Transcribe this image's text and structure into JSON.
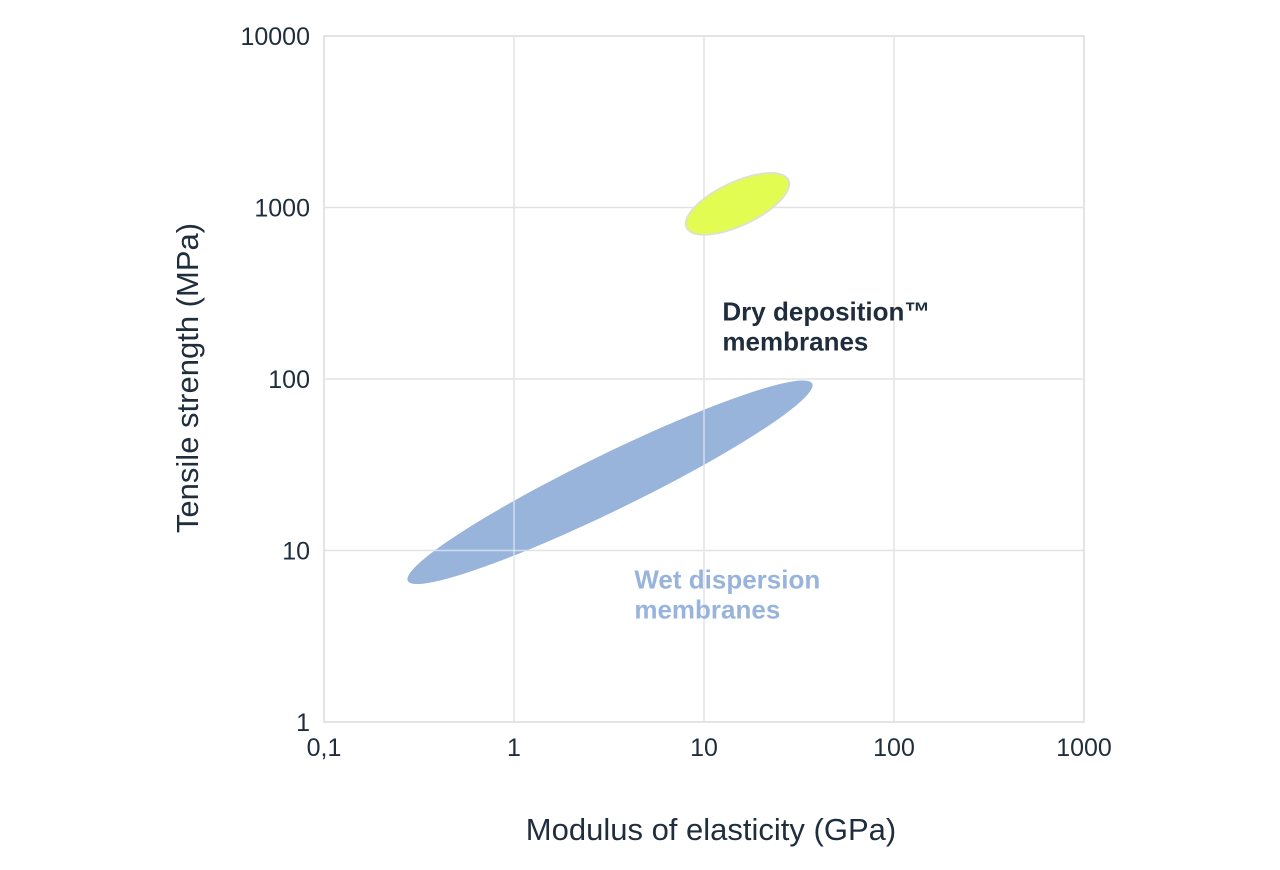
{
  "chart_data": {
    "type": "scatter",
    "title": "",
    "xlabel": "Modulus of elasticity (GPa)",
    "ylabel": "Tensile strength (MPa)",
    "xscale": "log",
    "yscale": "log",
    "xlim": [
      0.1,
      1000
    ],
    "ylim": [
      1,
      10000
    ],
    "x_ticks": [
      {
        "value": 0.1,
        "label": "0,1"
      },
      {
        "value": 1,
        "label": "1"
      },
      {
        "value": 10,
        "label": "10"
      },
      {
        "value": 100,
        "label": "100"
      },
      {
        "value": 1000,
        "label": "1000"
      }
    ],
    "y_ticks": [
      {
        "value": 1,
        "label": "1"
      },
      {
        "value": 10,
        "label": "10"
      },
      {
        "value": 100,
        "label": "100"
      },
      {
        "value": 1000,
        "label": "1000"
      },
      {
        "value": 10000,
        "label": "10000"
      }
    ],
    "grid": true,
    "legend": "none",
    "regions": [
      {
        "id": "dry",
        "label_lines": [
          "Dry deposition™",
          "membranes"
        ],
        "x_range": [
          8,
          28
        ],
        "y_range": [
          700,
          1600
        ],
        "center": [
          15,
          1050
        ],
        "tilt_deg": -25,
        "fill": "#e3fc52",
        "stroke": "#dde3c8",
        "label_color": "#1f2d3d",
        "label_anchor": [
          12.5,
          220
        ]
      },
      {
        "id": "wet",
        "label_lines": [
          "Wet dispersion",
          "membranes"
        ],
        "x_range": [
          0.28,
          38
        ],
        "y_range": [
          6.5,
          100
        ],
        "center": [
          3.2,
          25
        ],
        "tilt_deg": -26,
        "fill": "#98b4da",
        "stroke": "none",
        "label_color": "#98b4da",
        "label_anchor": [
          4.3,
          6
        ]
      }
    ],
    "colors": {
      "grid": "#e3e3e3",
      "axis": "#cfcfcf",
      "text": "#1f2d3d"
    }
  }
}
